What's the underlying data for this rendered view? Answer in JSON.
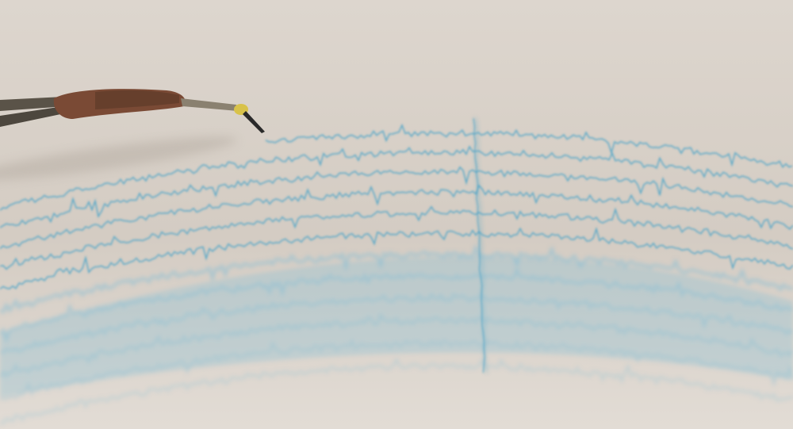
{
  "photo": {
    "subject": "seismograph-recording",
    "colors": {
      "paper_light": "#e3ddd6",
      "paper_shadow": "#c9c1b8",
      "ink": "#4aa3c8",
      "ink_faint": "#8bbfd4",
      "stylus_metal": "#6b6457",
      "stylus_wrap": "#7a4a35",
      "stylus_tip": "#d8c24a"
    },
    "trace": {
      "line_count": 12,
      "random_seed": 7
    }
  }
}
